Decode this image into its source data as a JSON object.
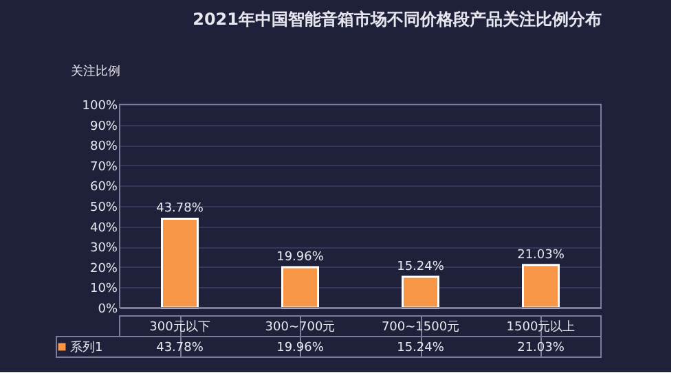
{
  "chart_data": {
    "type": "bar",
    "title": "2021年中国智能音箱市场不同价格段产品关注比例分布",
    "ylabel": "关注比例",
    "categories": [
      "300元以下",
      "300~700元",
      "700~1500元",
      "1500元以上"
    ],
    "series": [
      {
        "name": "系列1",
        "color": "#f79646",
        "values": [
          43.78,
          19.96,
          15.24,
          21.03
        ],
        "value_labels": [
          "43.78%",
          "19.96%",
          "15.24%",
          "21.03%"
        ]
      }
    ],
    "ylim": [
      0,
      100
    ],
    "yticks": [
      {
        "value": 0,
        "label": "0%"
      },
      {
        "value": 10,
        "label": "10%"
      },
      {
        "value": 20,
        "label": "20%"
      },
      {
        "value": 30,
        "label": "30%"
      },
      {
        "value": 40,
        "label": "40%"
      },
      {
        "value": 50,
        "label": "50%"
      },
      {
        "value": 60,
        "label": "60%"
      },
      {
        "value": 70,
        "label": "70%"
      },
      {
        "value": 80,
        "label": "80%"
      },
      {
        "value": 90,
        "label": "90%"
      },
      {
        "value": 100,
        "label": "100%"
      }
    ],
    "grid": "y",
    "legend": "bottom left"
  }
}
